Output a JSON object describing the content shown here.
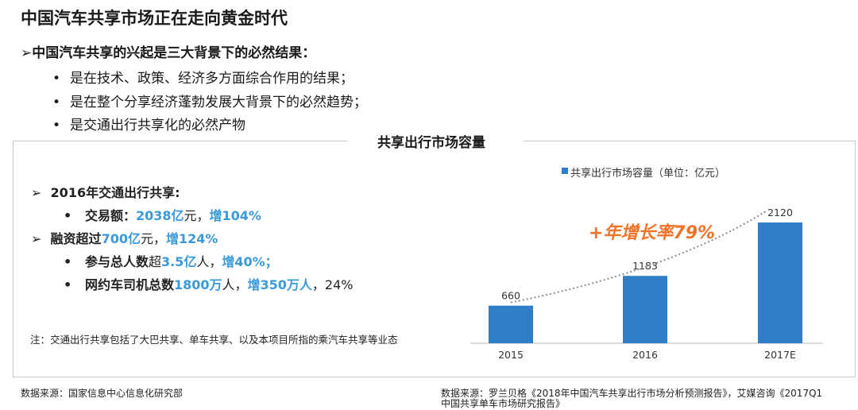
{
  "page": {
    "title": "中国汽车共享市场正在走向黄金时代",
    "section_heading": "中国汽车共享的兴起是三大背景下的必然结果：",
    "bullets": [
      "是在技术、政策、经济多方面综合作用的结果；",
      "是在整个分享经济蓬勃发展大背景下的必然趋势；",
      "是交通出行共享化的必然产物"
    ],
    "panel_title": "共享出行市场容量",
    "left": {
      "item1": "2016年交通出行共享:",
      "item1_sub_label": "交易额：",
      "item1_sub_value": "2038亿",
      "item1_sub_unit": "元，",
      "item1_sub_growth": "增104%",
      "item2_label": "融资超过",
      "item2_value": "700亿",
      "item2_unit": "元，",
      "item2_growth": "增124%",
      "item2_sub1_label": "参与总人数",
      "item2_sub1_mid": "超",
      "item2_sub1_value": "3.5亿",
      "item2_sub1_unit": "人，",
      "item2_sub1_growth": "增40%；",
      "item2_sub2_label": "网约车司机总数",
      "item2_sub2_value": "1800万",
      "item2_sub2_unit": "人，",
      "item2_sub2_growth": "增350万人",
      "item2_sub2_tail": "，24%"
    },
    "note": "注：交通出行共享包括了大巴共享、单车共享、以及本项目所指的乘汽车共享等业态",
    "source_left": "数据来源：国家信息中心信息化研究部",
    "source_right_line1": "数据来源：罗兰贝格《2018年中国汽车共享出行市场分析预测报告》，艾媒咨询《2017Q1",
    "source_right_line2": "中国共享单车市场研究报告》",
    "growth_annotation": "+年增长率79%"
  },
  "chart_data": {
    "type": "bar",
    "categories": [
      "2015",
      "2016",
      "2017E"
    ],
    "series": [
      {
        "name": "共享出行市场容量（单位：亿元）",
        "values": [
          660,
          1183,
          2120
        ]
      }
    ],
    "legend": "top",
    "trendline": "dotted",
    "grid": false,
    "color": "#2e7fc8"
  }
}
